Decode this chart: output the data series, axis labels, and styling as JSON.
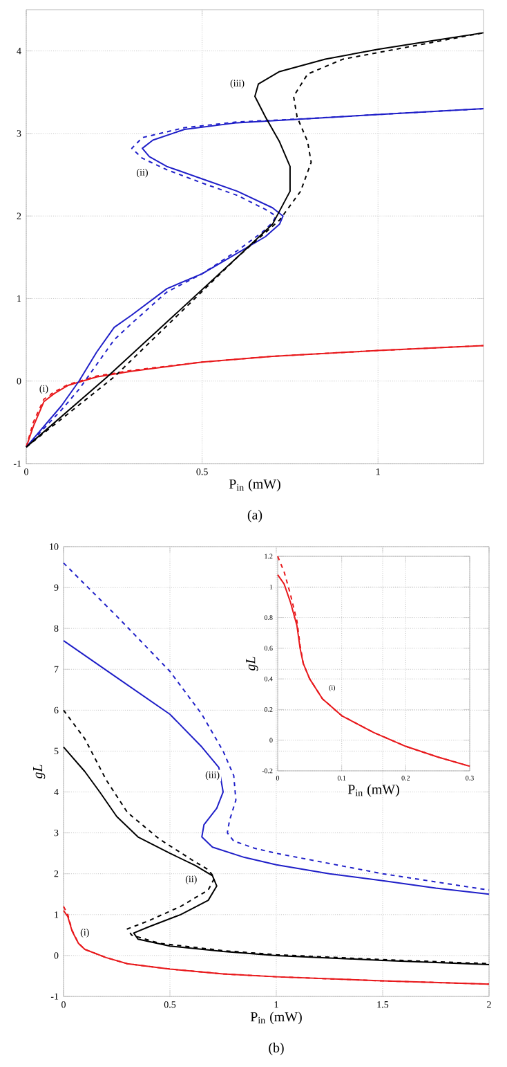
{
  "chart_data": [
    {
      "type": "line",
      "xlabel": "P$_{in}$ (mW)",
      "xlim": [
        0,
        1.3
      ],
      "ylim": [
        -1,
        4.5
      ],
      "xticks": [
        0,
        0.5,
        1
      ],
      "yticks": [
        -1,
        0,
        1,
        2,
        3,
        4
      ],
      "grid": true,
      "annotations": [
        "(a)",
        {
          "text": "(i)",
          "x": 0.05,
          "y": -0.1
        },
        {
          "text": "(ii)",
          "x": 0.33,
          "y": 2.52
        },
        {
          "text": "(iii)",
          "x": 0.6,
          "y": 3.6
        }
      ],
      "series": [
        {
          "color": "#e8191c",
          "line_style": "solid",
          "x": [
            0,
            0.02,
            0.05,
            0.08,
            0.12,
            0.2,
            0.3,
            0.5,
            0.7,
            1,
            1.3
          ],
          "values": [
            -0.8,
            -0.55,
            -0.25,
            -0.15,
            -0.05,
            0.05,
            0.12,
            0.23,
            0.3,
            0.37,
            0.43
          ]
        },
        {
          "color": "#e8191c",
          "line_style": "dashed",
          "x": [
            0,
            0.02,
            0.05,
            0.08,
            0.12,
            0.2,
            0.3,
            0.5,
            0.7,
            1,
            1.3
          ],
          "values": [
            -0.8,
            -0.5,
            -0.22,
            -0.13,
            -0.04,
            0.06,
            0.13,
            0.23,
            0.3,
            0.37,
            0.43
          ]
        },
        {
          "color": "#1f1fc8",
          "line_style": "solid",
          "x": [
            0,
            0.1,
            0.15,
            0.2,
            0.25,
            0.3,
            0.4,
            0.5,
            0.6,
            0.68,
            0.72,
            0.73,
            0.7,
            0.6,
            0.5,
            0.4,
            0.35,
            0.33,
            0.36,
            0.45,
            0.6,
            0.8,
            1,
            1.3
          ],
          "values": [
            -0.8,
            -0.3,
            0,
            0.35,
            0.65,
            0.8,
            1.12,
            1.3,
            1.55,
            1.75,
            1.9,
            2.0,
            2.1,
            2.3,
            2.45,
            2.6,
            2.72,
            2.82,
            2.92,
            3.05,
            3.13,
            3.18,
            3.23,
            3.3
          ]
        },
        {
          "color": "#1f1fc8",
          "line_style": "dashed",
          "x": [
            0,
            0.1,
            0.15,
            0.2,
            0.25,
            0.3,
            0.4,
            0.5,
            0.6,
            0.67,
            0.7,
            0.71,
            0.68,
            0.6,
            0.5,
            0.4,
            0.33,
            0.3,
            0.33,
            0.45,
            0.6,
            0.8,
            1,
            1.3
          ],
          "values": [
            -0.8,
            -0.35,
            -0.1,
            0.2,
            0.5,
            0.7,
            1.08,
            1.3,
            1.58,
            1.8,
            1.92,
            2.0,
            2.08,
            2.25,
            2.4,
            2.56,
            2.7,
            2.82,
            2.95,
            3.07,
            3.14,
            3.18,
            3.23,
            3.3
          ]
        },
        {
          "color": "#000000",
          "line_style": "solid",
          "x": [
            0,
            0.23,
            0.6,
            0.7,
            0.75,
            0.75,
            0.72,
            0.68,
            0.65,
            0.66,
            0.72,
            0.85,
            1,
            1.15,
            1.3
          ],
          "values": [
            -0.8,
            0.05,
            1.5,
            1.9,
            2.3,
            2.6,
            2.9,
            3.2,
            3.45,
            3.6,
            3.75,
            3.9,
            4.02,
            4.12,
            4.22
          ]
        },
        {
          "color": "#000000",
          "line_style": "dashed",
          "x": [
            0,
            0.25,
            0.6,
            0.72,
            0.78,
            0.81,
            0.8,
            0.77,
            0.76,
            0.8,
            0.9,
            1,
            1.15,
            1.3
          ],
          "values": [
            -0.8,
            0.05,
            1.5,
            1.95,
            2.3,
            2.65,
            2.9,
            3.2,
            3.45,
            3.72,
            3.9,
            3.98,
            4.1,
            4.22
          ]
        }
      ]
    },
    {
      "type": "line",
      "xlabel": "P$_{in}$ (mW)",
      "ylabel": "gL",
      "xlim": [
        0,
        2
      ],
      "ylim": [
        -1,
        10
      ],
      "xticks": [
        0,
        0.5,
        1,
        1.5,
        2
      ],
      "yticks": [
        -1,
        0,
        1,
        2,
        3,
        4,
        5,
        6,
        7,
        8,
        9,
        10
      ],
      "grid": true,
      "annotations": [
        "(b)",
        {
          "text": "(i)",
          "x": 0.1,
          "y": 0.55
        },
        {
          "text": "(ii)",
          "x": 0.6,
          "y": 1.85
        },
        {
          "text": "(iii)",
          "x": 0.7,
          "y": 4.4
        }
      ],
      "series": [
        {
          "color": "#e8191c",
          "line_style": "solid",
          "x": [
            0,
            0.02,
            0.04,
            0.07,
            0.1,
            0.2,
            0.3,
            0.5,
            0.75,
            1,
            1.5,
            2
          ],
          "values": [
            1.1,
            0.95,
            0.6,
            0.3,
            0.15,
            -0.05,
            -0.2,
            -0.33,
            -0.45,
            -0.52,
            -0.62,
            -0.7
          ]
        },
        {
          "color": "#e8191c",
          "line_style": "dashed",
          "x": [
            0,
            0.02,
            0.04,
            0.07,
            0.1,
            0.2,
            0.3,
            0.5,
            0.75,
            1,
            1.5,
            2
          ],
          "values": [
            1.2,
            1.0,
            0.62,
            0.3,
            0.15,
            -0.05,
            -0.2,
            -0.33,
            -0.45,
            -0.52,
            -0.62,
            -0.7
          ]
        },
        {
          "color": "#000000",
          "line_style": "solid",
          "x": [
            0,
            0.1,
            0.17,
            0.25,
            0.35,
            0.5,
            0.62,
            0.7,
            0.72,
            0.68,
            0.55,
            0.4,
            0.33,
            0.35,
            0.5,
            0.75,
            1,
            1.5,
            2
          ],
          "values": [
            5.1,
            4.5,
            4.0,
            3.4,
            2.9,
            2.5,
            2.2,
            1.95,
            1.7,
            1.35,
            1.0,
            0.7,
            0.55,
            0.4,
            0.23,
            0.1,
            0.0,
            -0.12,
            -0.22
          ]
        },
        {
          "color": "#000000",
          "line_style": "dashed",
          "x": [
            0,
            0.1,
            0.2,
            0.3,
            0.45,
            0.6,
            0.68,
            0.71,
            0.68,
            0.55,
            0.4,
            0.3,
            0.32,
            0.45,
            0.75,
            1,
            1.5,
            2
          ],
          "values": [
            6.0,
            5.3,
            4.3,
            3.5,
            2.85,
            2.35,
            2.1,
            1.9,
            1.6,
            1.2,
            0.85,
            0.65,
            0.5,
            0.3,
            0.12,
            0.02,
            -0.1,
            -0.2
          ]
        },
        {
          "color": "#1f1fc8",
          "line_style": "solid",
          "x": [
            0,
            0.25,
            0.5,
            0.65,
            0.73,
            0.75,
            0.72,
            0.66,
            0.65,
            0.7,
            0.85,
            1,
            1.25,
            1.5,
            1.75,
            2
          ],
          "values": [
            7.7,
            6.8,
            5.9,
            5.1,
            4.6,
            4.0,
            3.6,
            3.2,
            2.9,
            2.65,
            2.4,
            2.22,
            2.0,
            1.83,
            1.65,
            1.5
          ]
        },
        {
          "color": "#1f1fc8",
          "line_style": "dashed",
          "x": [
            0,
            0.25,
            0.5,
            0.65,
            0.75,
            0.8,
            0.81,
            0.78,
            0.77,
            0.8,
            0.9,
            1,
            1.25,
            1.5,
            1.75,
            2
          ],
          "values": [
            9.6,
            8.3,
            6.95,
            5.9,
            5.0,
            4.4,
            3.8,
            3.3,
            3.0,
            2.8,
            2.62,
            2.5,
            2.25,
            2.0,
            1.8,
            1.6
          ]
        }
      ]
    },
    {
      "type": "line",
      "xlabel": "P$_{in}$ (mW)",
      "ylabel": "gL",
      "xlim": [
        0,
        0.3
      ],
      "ylim": [
        -0.2,
        1.2
      ],
      "xticks": [
        0,
        0.1,
        0.2,
        0.3
      ],
      "yticks": [
        -0.2,
        0,
        0.2,
        0.4,
        0.6,
        0.8,
        1,
        1.2
      ],
      "grid": true,
      "annotations": [
        {
          "text": "(i)",
          "x": 0.085,
          "y": 0.34
        }
      ],
      "series": [
        {
          "color": "#e8191c",
          "line_style": "solid",
          "x": [
            0,
            0.01,
            0.02,
            0.03,
            0.035,
            0.04,
            0.05,
            0.07,
            0.1,
            0.15,
            0.2,
            0.25,
            0.3
          ],
          "values": [
            1.08,
            1.02,
            0.9,
            0.75,
            0.6,
            0.5,
            0.4,
            0.27,
            0.16,
            0.05,
            -0.04,
            -0.11,
            -0.17
          ]
        },
        {
          "color": "#e8191c",
          "line_style": "dashed",
          "x": [
            0,
            0.01,
            0.02,
            0.03,
            0.035,
            0.04,
            0.05,
            0.07,
            0.1,
            0.15,
            0.2,
            0.25,
            0.3
          ],
          "values": [
            1.2,
            1.1,
            0.95,
            0.78,
            0.62,
            0.5,
            0.4,
            0.27,
            0.16,
            0.05,
            -0.04,
            -0.11,
            -0.17
          ]
        }
      ]
    }
  ]
}
